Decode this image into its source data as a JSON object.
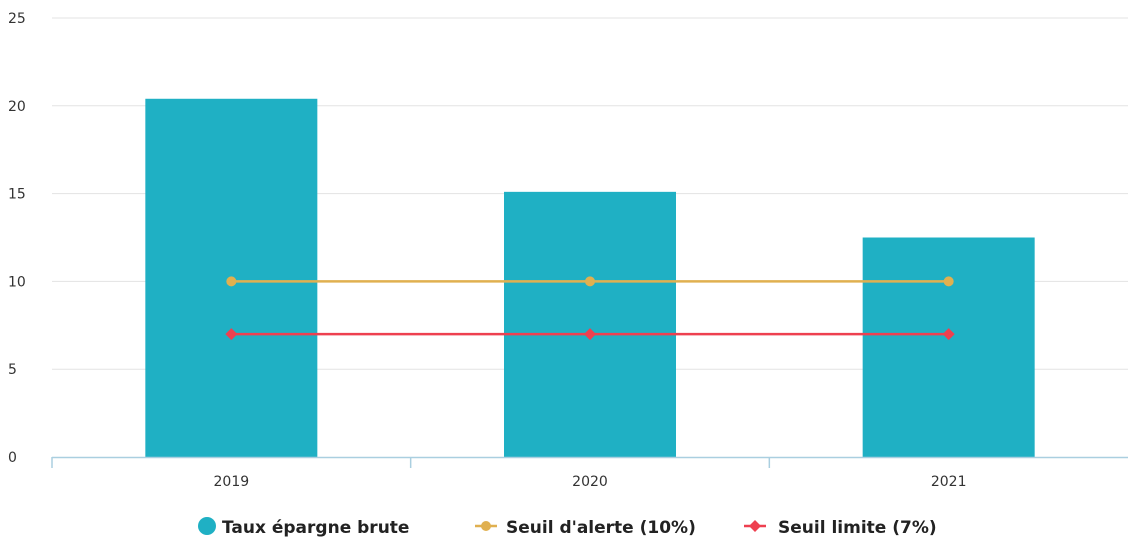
{
  "chart_data": {
    "type": "bar",
    "categories": [
      "2019",
      "2020",
      "2021"
    ],
    "ylim": [
      0,
      25
    ],
    "yticks": [
      0,
      5,
      10,
      15,
      20,
      25
    ],
    "grid": true,
    "legend_position": "bottom-center",
    "series": [
      {
        "name": "Taux épargne brute",
        "kind": "bar",
        "values": [
          20.4,
          15.1,
          12.5
        ],
        "color": "#1fb0c4",
        "marker": "circle"
      },
      {
        "name": "Seuil d'alerte (10%)",
        "kind": "line",
        "values": [
          10,
          10,
          10
        ],
        "color": "#e0b050",
        "marker": "circle"
      },
      {
        "name": "Seuil limite (7%)",
        "kind": "line",
        "values": [
          7,
          7,
          7
        ],
        "color": "#ee4050",
        "marker": "diamond"
      }
    ]
  }
}
